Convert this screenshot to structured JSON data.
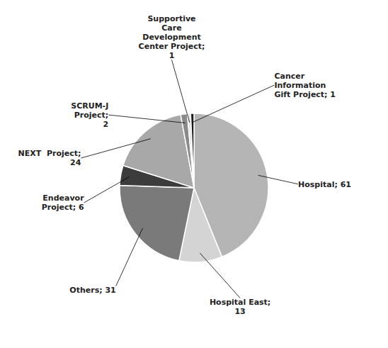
{
  "chart_data": {
    "type": "pie",
    "categories": [
      "Hospital; 61",
      "Hospital East;\n13",
      "Others; 31",
      "Endeavor\nProject; 6",
      "NEXT  Project;\n24",
      "SCRUM-J\nProject;\n2",
      "Supportive\nCare\nDevelopment\nCenter Project;\n1",
      "Cancer\nInformation\nGift Project; 1"
    ],
    "values": [
      61,
      13,
      31,
      6,
      24,
      2,
      1,
      1
    ],
    "colors": [
      "#b5b5b5",
      "#d4d4d4",
      "#7a7a7a",
      "#3c3c3c",
      "#a8a8a8",
      "#8a8a8a",
      "#e2e2e2",
      "#1a1a1a"
    ]
  }
}
